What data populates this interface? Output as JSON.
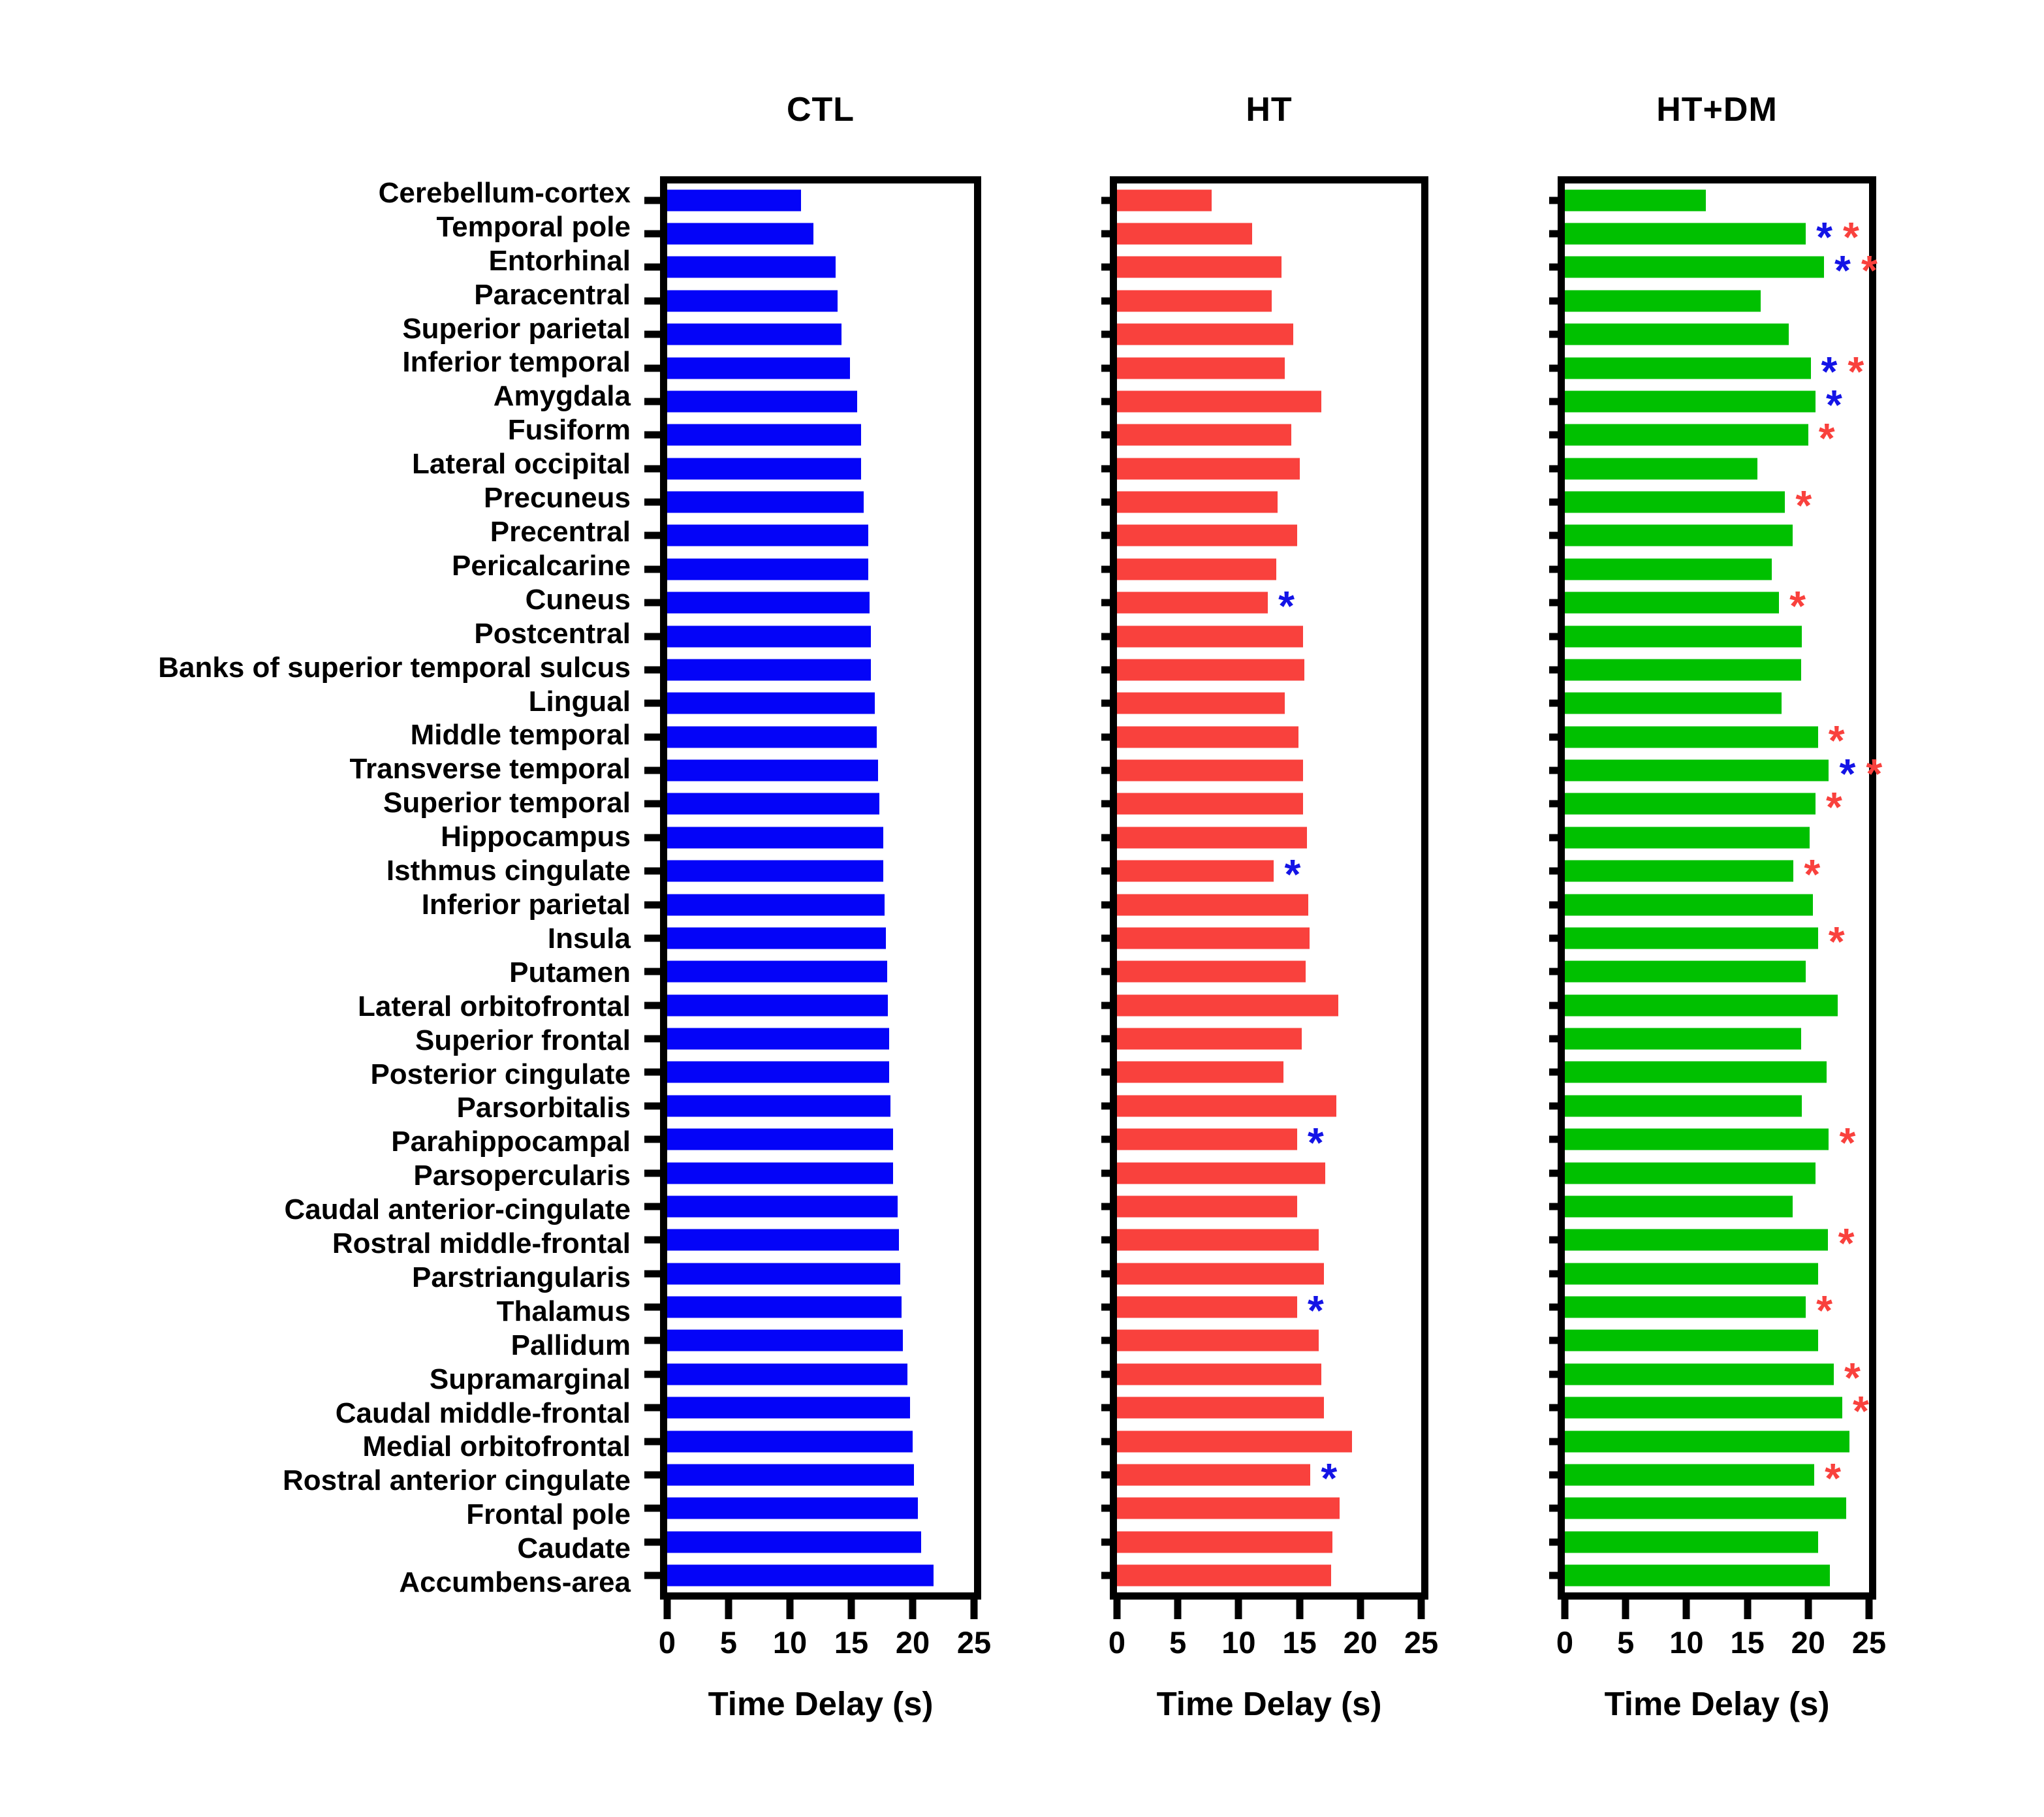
{
  "chart_data": {
    "type": "bar",
    "orientation": "horizontal",
    "xlabel": "Time Delay (s)",
    "xlim": [
      0,
      25
    ],
    "xticks": [
      0,
      5,
      10,
      15,
      20,
      25
    ],
    "grid": false,
    "legend_position": "none",
    "marker_colors": {
      "blue": "#1414E6",
      "red": "#F9413D"
    },
    "categories": [
      "Cerebellum-cortex",
      "Temporal pole",
      "Entorhinal",
      "Paracentral",
      "Superior parietal",
      "Inferior temporal",
      "Amygdala",
      "Fusiform",
      "Lateral occipital",
      "Precuneus",
      "Precentral",
      "Pericalcarine",
      "Cuneus",
      "Postcentral",
      "Banks of superior temporal sulcus",
      "Lingual",
      "Middle temporal",
      "Transverse temporal",
      "Superior temporal",
      "Hippocampus",
      "Isthmus cingulate",
      "Inferior parietal",
      "Insula",
      "Putamen",
      "Lateral orbitofrontal",
      "Superior frontal",
      "Posterior cingulate",
      "Parsorbitalis",
      "Parahippocampal",
      "Parsopercularis",
      "Caudal anterior-cingulate",
      "Rostral middle-frontal",
      "Parstriangularis",
      "Thalamus",
      "Pallidum",
      "Supramarginal",
      "Caudal middle-frontal",
      "Medial orbitofrontal",
      "Rostral anterior cingulate",
      "Frontal pole",
      "Caudate",
      "Accumbens-area"
    ],
    "series": [
      {
        "name": "CTL",
        "color": "#0404F8",
        "values": [
          10.9,
          11.9,
          13.7,
          13.9,
          14.2,
          14.9,
          15.5,
          15.8,
          15.8,
          16.0,
          16.4,
          16.4,
          16.5,
          16.6,
          16.6,
          16.9,
          17.1,
          17.2,
          17.3,
          17.6,
          17.6,
          17.7,
          17.8,
          17.9,
          18.0,
          18.1,
          18.1,
          18.2,
          18.4,
          18.4,
          18.8,
          18.9,
          19.0,
          19.1,
          19.2,
          19.6,
          19.8,
          20.0,
          20.1,
          20.4,
          20.7,
          21.7
        ],
        "markers": [
          [],
          [],
          [],
          [],
          [],
          [],
          [],
          [],
          [],
          [],
          [],
          [],
          [],
          [],
          [],
          [],
          [],
          [],
          [],
          [],
          [],
          [],
          [],
          [],
          [],
          [],
          [],
          [],
          [],
          [],
          [],
          [],
          [],
          [],
          [],
          [],
          [],
          [],
          [],
          [],
          [],
          []
        ]
      },
      {
        "name": "HT",
        "color": "#F9413D",
        "values": [
          7.8,
          11.1,
          13.5,
          12.7,
          14.5,
          13.8,
          16.8,
          14.3,
          15.0,
          13.2,
          14.8,
          13.1,
          12.4,
          15.3,
          15.4,
          13.8,
          14.9,
          15.3,
          15.3,
          15.6,
          12.9,
          15.7,
          15.8,
          15.5,
          18.2,
          15.2,
          13.7,
          18.0,
          14.8,
          17.1,
          14.8,
          16.6,
          17.0,
          14.8,
          16.6,
          16.8,
          17.0,
          19.3,
          15.9,
          18.3,
          17.7,
          17.6
        ],
        "markers": [
          [],
          [],
          [],
          [],
          [],
          [],
          [],
          [],
          [],
          [],
          [],
          [],
          [
            "blue"
          ],
          [],
          [],
          [],
          [],
          [],
          [],
          [],
          [
            "blue"
          ],
          [],
          [],
          [],
          [],
          [],
          [],
          [],
          [
            "blue"
          ],
          [],
          [],
          [],
          [],
          [
            "blue"
          ],
          [],
          [],
          [],
          [],
          [
            "blue"
          ],
          [],
          [],
          []
        ]
      },
      {
        "name": "HT+DM",
        "color": "#00C000",
        "values": [
          11.6,
          19.8,
          21.3,
          16.1,
          18.4,
          20.2,
          20.6,
          20.0,
          15.8,
          18.1,
          18.7,
          17.0,
          17.6,
          19.5,
          19.4,
          17.8,
          20.8,
          21.7,
          20.6,
          20.1,
          18.8,
          20.4,
          20.8,
          19.8,
          22.4,
          19.4,
          21.5,
          19.5,
          21.7,
          20.6,
          18.7,
          21.6,
          20.8,
          19.8,
          20.8,
          22.1,
          22.8,
          23.4,
          20.5,
          23.1,
          20.8,
          21.8
        ],
        "markers": [
          [],
          [
            "blue",
            "red"
          ],
          [
            "blue",
            "red"
          ],
          [],
          [],
          [
            "blue",
            "red"
          ],
          [
            "blue"
          ],
          [
            "red"
          ],
          [],
          [
            "red"
          ],
          [],
          [],
          [
            "red"
          ],
          [],
          [],
          [],
          [
            "red"
          ],
          [
            "blue",
            "red"
          ],
          [
            "red"
          ],
          [],
          [
            "red"
          ],
          [],
          [
            "red"
          ],
          [],
          [],
          [],
          [],
          [],
          [
            "red"
          ],
          [],
          [],
          [
            "red"
          ],
          [],
          [
            "red"
          ],
          [],
          [
            "red"
          ],
          [
            "red"
          ],
          [],
          [
            "red"
          ],
          [],
          [],
          []
        ]
      }
    ]
  }
}
